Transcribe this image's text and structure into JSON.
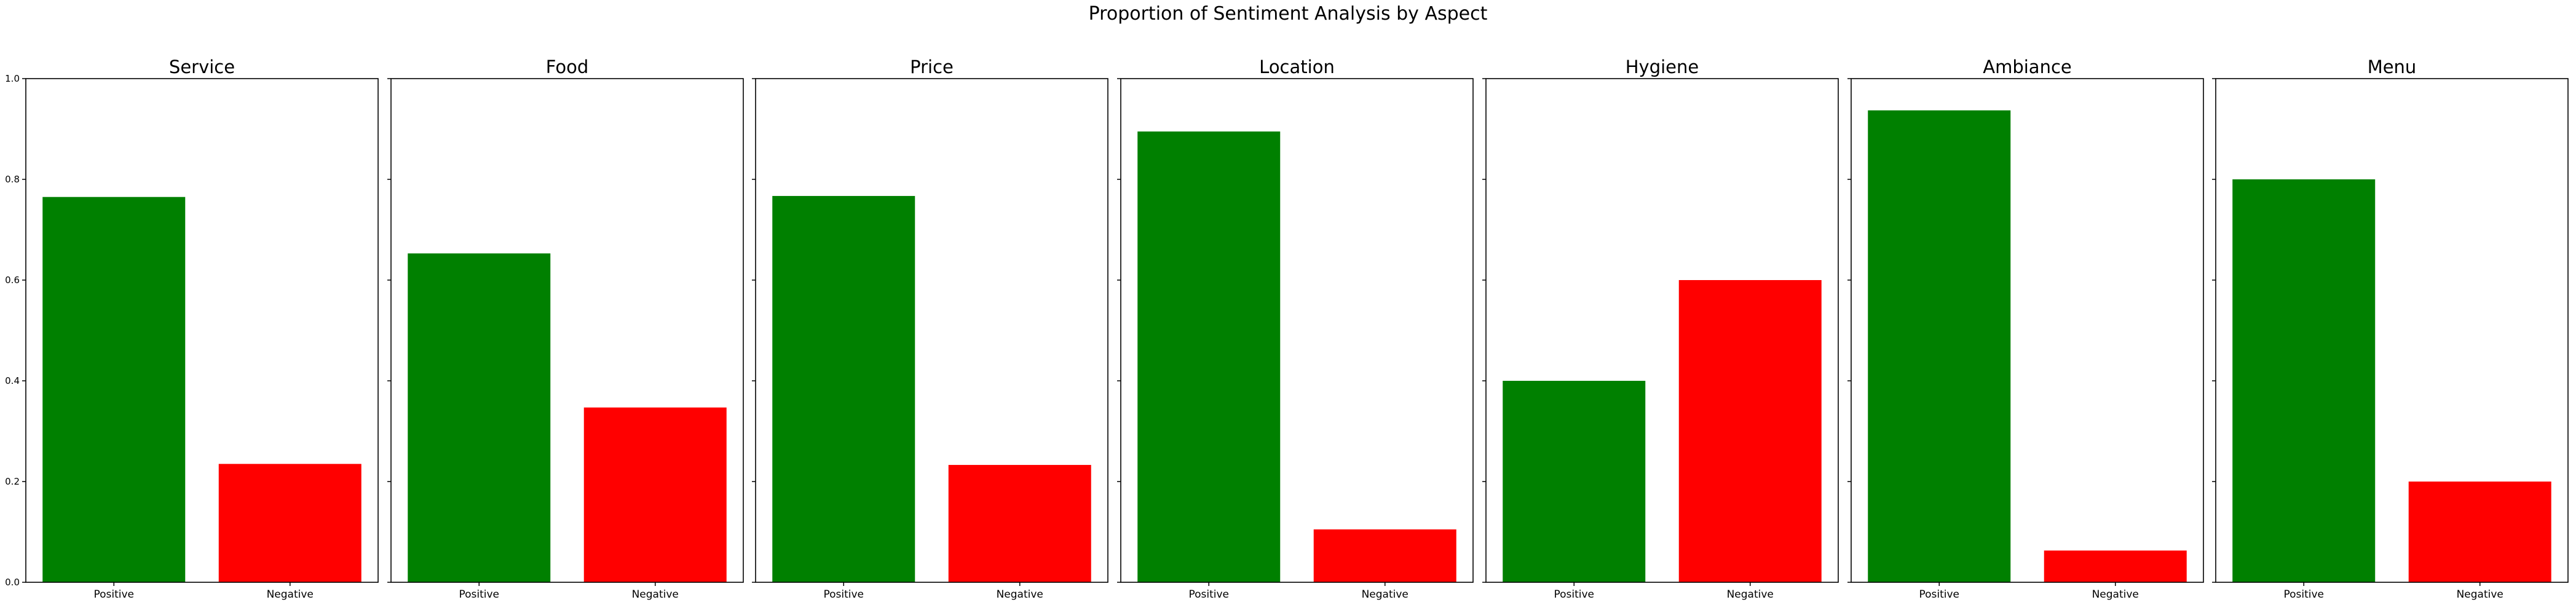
{
  "chart_data": {
    "type": "bar",
    "title": "Proportion of Sentiment Analysis by Aspect",
    "categories": [
      "Positive",
      "Negative"
    ],
    "colors": {
      "Positive": "#008000",
      "Negative": "#ff0000"
    },
    "ylim": [
      0,
      1.0
    ],
    "yticks": [
      "0.0",
      "0.2",
      "0.4",
      "0.6",
      "0.8",
      "1.0"
    ],
    "grid": false,
    "panels": [
      {
        "title": "Service",
        "values": [
          0.765,
          0.235
        ]
      },
      {
        "title": "Food",
        "values": [
          0.653,
          0.347
        ]
      },
      {
        "title": "Price",
        "values": [
          0.767,
          0.233
        ]
      },
      {
        "title": "Location",
        "values": [
          0.895,
          0.105
        ]
      },
      {
        "title": "Hygiene",
        "values": [
          0.4,
          0.6
        ]
      },
      {
        "title": "Ambiance",
        "values": [
          0.937,
          0.063
        ]
      },
      {
        "title": "Menu",
        "values": [
          0.8,
          0.2
        ]
      }
    ]
  }
}
